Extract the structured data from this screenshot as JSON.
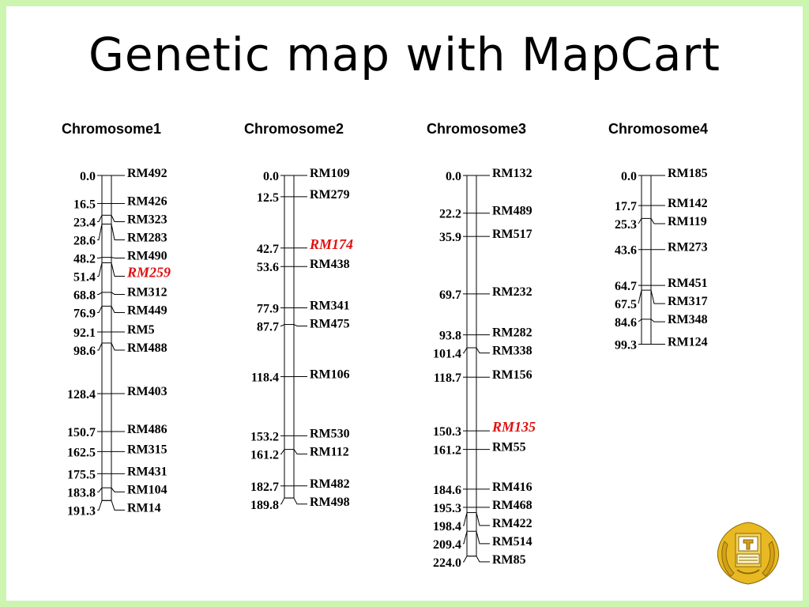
{
  "title": "Genetic map with MapCart",
  "highlight_color": "#e01010",
  "frame_color": "#ccf5b0",
  "emblem": {
    "icon": "university-emblem-icon",
    "color": "#d4a017"
  },
  "chromosomes": [
    {
      "name": "Chromosome1",
      "length": 191.3,
      "positions": [
        "0.0",
        "16.5",
        "23.4",
        "28.6",
        "48.2",
        "51.4",
        "68.8",
        "76.9",
        "92.1",
        "98.6",
        "128.4",
        "150.7",
        "162.5",
        "175.5",
        "183.8",
        "191.3"
      ],
      "markers": [
        "RM492",
        "RM426",
        "RM323",
        "RM283",
        "RM490",
        "RM259",
        "RM312",
        "RM449",
        "RM5",
        "RM488",
        "RM403",
        "RM486",
        "RM315",
        "RM431",
        "RM104",
        "RM14"
      ],
      "highlighted": [
        "RM259"
      ]
    },
    {
      "name": "Chromosome2",
      "length": 189.8,
      "positions": [
        "0.0",
        "12.5",
        "42.7",
        "53.6",
        "77.9",
        "87.7",
        "118.4",
        "153.2",
        "161.2",
        "182.7",
        "189.8"
      ],
      "markers": [
        "RM109",
        "RM279",
        "RM174",
        "RM438",
        "RM341",
        "RM475",
        "RM106",
        "RM530",
        "RM112",
        "RM482",
        "RM498"
      ],
      "highlighted": [
        "RM174"
      ]
    },
    {
      "name": "Chromosome3",
      "length": 224.0,
      "positions": [
        "0.0",
        "22.2",
        "35.9",
        "69.7",
        "93.8",
        "101.4",
        "118.7",
        "150.3",
        "161.2",
        "184.6",
        "195.3",
        "198.4",
        "209.4",
        "224.0"
      ],
      "markers": [
        "RM132",
        "RM489",
        "RM517",
        "RM232",
        "RM282",
        "RM338",
        "RM156",
        "RM135",
        "RM55",
        "RM416",
        "RM468",
        "RM422",
        "RM514",
        "RM85"
      ],
      "highlighted": [
        "RM135"
      ]
    },
    {
      "name": "Chromosome4",
      "length": 99.3,
      "positions": [
        "0.0",
        "17.7",
        "25.3",
        "43.6",
        "64.7",
        "67.5",
        "84.6",
        "99.3"
      ],
      "markers": [
        "RM185",
        "RM142",
        "RM119",
        "RM273",
        "RM451",
        "RM317",
        "RM348",
        "RM124"
      ],
      "highlighted": []
    }
  ]
}
